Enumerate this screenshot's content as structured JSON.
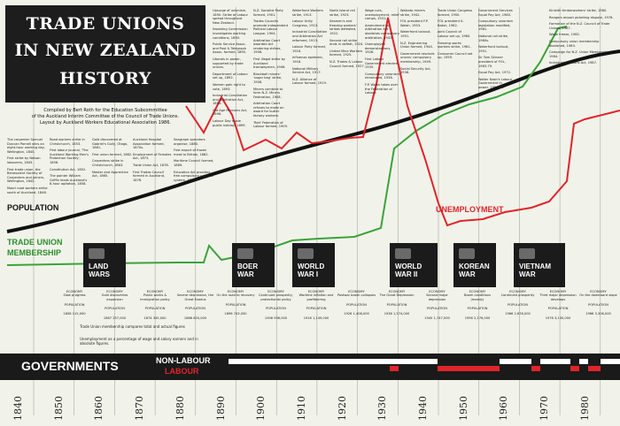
{
  "title": {
    "lines": [
      "TRADE UNIONS",
      "IN NEW ZEALAND",
      "HISTORY"
    ]
  },
  "credits": {
    "lines": [
      "Compiled by Bert Roth for the Education Subcommittee",
      "of the Auckland Interim Committee of the Council of Trade Unions.",
      "Layout by Auckland Workers Educational Association 1986."
    ]
  },
  "labels": {
    "population": "POPULATION",
    "membership": "TRADE UNION\nMEMBERSHIP",
    "unemployment": "UNEMPLOYMENT",
    "governments": "GOVERNMENTS",
    "non_labour": "NON-LABOUR",
    "labour": "LABOUR",
    "legend_note": "Trade Union membership compares total and actual figures",
    "unemployment_note": "Unemployment as a percentage of wage and salary earners and in absolute figures."
  },
  "wars": [
    {
      "label": "LAND\nWARS"
    },
    {
      "label": "BOER\nWAR"
    },
    {
      "label": "WORLD\nWAR I"
    },
    {
      "label": "WORLD\nWAR II"
    },
    {
      "label": "KOREAN\nWAR"
    },
    {
      "label": "VIETNAM\nWAR"
    }
  ],
  "decades": [
    "1840",
    "1850",
    "1860",
    "1870",
    "1880",
    "1890",
    "1900",
    "1910",
    "1920",
    "1930",
    "1940",
    "1950",
    "1960",
    "1970",
    "1980"
  ],
  "columns": [
    [
      "Upsurge of unionism, 1890. Strike of Labour spread throughout New Zealand.",
      "Sweating Commission investigates working conditions, 1890.",
      "Public Service Assoc. and Post & Telegraph Assoc. formed, 1890.",
      "Liberals in power, supported by trade unions.",
      "Department of Labour set up, 1892.",
      "Women gain right to vote, 1893.",
      "Industrial Conciliation and Arbitration Act, 1894.",
      "Old Age Pensions Act, 1898.",
      "Labour Day made public holiday, 1899."
    ],
    [
      "N.Z. Socialist Party formed, 1901.",
      "Trades Councils promote Independent Political Labour League, 1904.",
      "Arbitration Court awarded Act rendering strikes, 1906.",
      "First illegal strike by Auckland tramwaymen, 1906.",
      "Blackball miners' 'sugar bag' strike, 1908.",
      "Miners combine to form N.Z. Miners Federation, 1908.",
      "Arbitration Court refuses to make an award for butter factory workers.",
      "'Red' Federation of Labour formed, 1909."
    ],
    [
      "Waterfront Workers strike, 1913.",
      "Labour Unity Congress, 1913.",
      "Industrial Conciliation and Arbitration Act reformed, 1913.",
      "Labour Party formed, 1916.",
      "Influenza epidemic, 1918.",
      "National Military Service Act, 1917.",
      "N.Z. Alliance of Labour formed, 1919."
    ],
    [
      "North Island rail strike, 1923.",
      "Seamen's and freezing workers' strikes defeated, 1922.",
      "Second rail strike ends in defeat, 1924.",
      "United Mine Workers formed, 1925.",
      "N.Z. Trades & Labour Council formed, 1927."
    ],
    [
      "Wage cuts, unemployment, relief camps, 1931.",
      "Amendment to Arbitration Act abolishes compulsory arbitration, 1932.",
      "Unemployed demonstrations, 1928.",
      "First Labour Government elected, 1935.",
      "Compulsory unionism introduced, 1936.",
      "F.P. Walsh takes over the Federation of Labour."
    ],
    [
      "Waikato miners strike, 1942.",
      "FOL president F.P. Walsh, 1953.",
      "Waterfront lockout, 1951.",
      "N.Z. Engineering Union formed, 1944.",
      "Government rescinds unions' compulsory membership, 1949.",
      "Social Security Act, 1938."
    ],
    [
      "Trade Union Congress formed, 1950.",
      "FOL president K. Baker, 1962.",
      "Joint Council of Labour set up, 1960.",
      "Freezing works workers strike, 1961.",
      "Consumer Council set up, 1959."
    ],
    [
      "Government Services Equal Pay Act, 1960.",
      "Compulsory unionism legislation modified, 1961.",
      "National rail strike, 1960s.",
      "Waterfront lockout, 1951.",
      "Sir Tom Skinner president of FOL, 1963-79.",
      "Equal Pay Act, 1972.",
      "Walter Nash's Labour Government in power, 1957-60."
    ],
    [
      "Kinleith timberworkers' strike, 1980.",
      "Rangers airport picketing dispute, 1978.",
      "Formation of the N.Z. Council of Trade Unions, 1987.",
      "Wage freeze, 1982.",
      "Compulsory union membership abolished, 1983.",
      "Campaign for N.Z. Union Membership, 1984.",
      "Industrial Relations Act, 1987."
    ]
  ],
  "lower_left": [
    [
      "The carpenter Samuel Duncan Parnell wins an eight-hour working day, Wellington, 1840.",
      "First strike by Nelson labourers, 1843.",
      "First trade union, the Benevolent Society of Carpenters and Joiners, Wellington, 1842.",
      "Maori road workers strike south of Auckland, 1848."
    ],
    [
      "Road workers strike in Christchurch, 1853.",
      "First labour journal, 'The Auckland Working Men's Protection Society', 1856.",
      "Constitution Act, 1852.",
      "The pointer William Griffin leads Auckland's 8-hour agitation, 1858."
    ],
    [
      "Gold discovered at Gabriel's Gully, Otago, 1861.",
      "First union formed, 1862.",
      "Carpenters strike in Christchurch, 1863.",
      "Master and Apprentice Act, 1865."
    ],
    [
      "Auckland Hospital Association formed, 1870s.",
      "Employment of Females Act, 1873.",
      "Trade Union Act, 1878.",
      "First Trades Council formed in Auckland, 1876."
    ],
    [
      "Seagraph operators organise, 1880.",
      "First export of frozen meat to Britain, 1882.",
      "Maritime Council formed, 1889.",
      "Education Act provides free compulsory national system, 1877."
    ]
  ],
  "economy": [
    {
      "head": "ECONOMY\nSlow progress",
      "rows": [
        "POPULATION",
        "1858  115,000"
      ]
    },
    {
      "head": "ECONOMY\nGold discoveries expansion",
      "rows": [
        "POPULATION",
        "1867  257,000"
      ]
    },
    {
      "head": "ECONOMY\nPublic works & immigration policy",
      "rows": [
        "POPULATION",
        "1874  345,000"
      ]
    },
    {
      "head": "ECONOMY\nSevere depression, the Great Exodus",
      "rows": [
        "POPULATION",
        "1886  620,000"
      ]
    },
    {
      "head": "ECONOMY\nOn the road to recovery",
      "rows": [
        "POPULATION",
        "1896  743,000"
      ]
    },
    {
      "head": "ECONOMY\nContinued prosperity, protectionist policy",
      "rows": [
        "POPULATION",
        "1906  936,000"
      ]
    },
    {
      "head": "ECONOMY\nWartime inflation and profiteering",
      "rows": [
        "POPULATION",
        "1916  1,149,000"
      ]
    },
    {
      "head": "ECONOMY\nPostwar boom collapses",
      "rows": [
        "POPULATION",
        "1926  1,408,000"
      ]
    },
    {
      "head": "ECONOMY\nThe Great Depression",
      "rows": [
        "POPULATION",
        "1936  1,574,000"
      ]
    },
    {
      "head": "ECONOMY\nSecond major depression",
      "rows": [
        "POPULATION",
        "1945  1,747,000"
      ]
    },
    {
      "head": "ECONOMY\nBoom conditions (mostly)",
      "rows": [
        "POPULATION",
        "1956  2,176,000"
      ]
    },
    {
      "head": "ECONOMY\nContinued prosperity",
      "rows": [
        "POPULATION",
        "1966  2,678,000"
      ]
    },
    {
      "head": "ECONOMY\nThird major depression develops",
      "rows": [
        "POPULATION",
        "1976  3,130,000"
      ]
    },
    {
      "head": "ECONOMY\nOn the downward slope",
      "rows": [
        "POPULATION",
        "1986  3,306,000"
      ]
    }
  ],
  "colors": {
    "population_line": "#111111",
    "membership_line": "#3aa33a",
    "unemployment_line": "#e0242b",
    "banner": "#1b1b1b",
    "labour": "#e0242b",
    "background": "#f1f3ea"
  }
}
